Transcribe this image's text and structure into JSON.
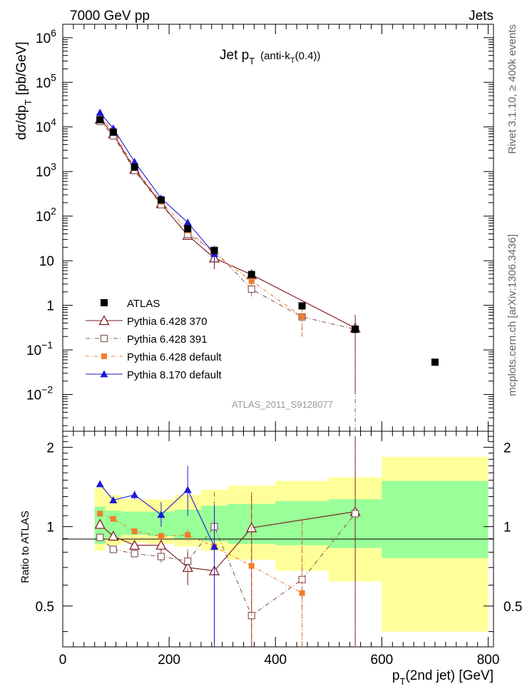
{
  "header": {
    "left": "7000 GeV pp",
    "right": "Jets",
    "side_top": "Rivet 3.1.10, ≥ 400k events",
    "side_bottom": "mcplots.cern.ch [arXiv:1306.3436]"
  },
  "chart_data": [
    {
      "type": "scatter",
      "title_main": "Jet p",
      "title_sub": "T",
      "title_paren": "(anti-k",
      "title_paren_sub": "T",
      "title_paren_end": "(0.4))",
      "ylabel_main": "dσ/dp",
      "ylabel_sub": "T",
      "ylabel_unit": "[pb/GeV]",
      "analysis_label": "ATLAS_2011_S9128077",
      "yscale": "log",
      "xlim": [
        0,
        810
      ],
      "ylim": [
        0.0015,
        2000000
      ],
      "y_ticks": [
        {
          "v": 1000000.0,
          "label": "10",
          "exp": "6"
        },
        {
          "v": 100000.0,
          "label": "10",
          "exp": "5"
        },
        {
          "v": 10000.0,
          "label": "10",
          "exp": "4"
        },
        {
          "v": 1000.0,
          "label": "10",
          "exp": "3"
        },
        {
          "v": 100.0,
          "label": "10",
          "exp": "2"
        },
        {
          "v": 10,
          "label": "10",
          "exp": ""
        },
        {
          "v": 1,
          "label": "1",
          "exp": ""
        },
        {
          "v": 0.1,
          "label": "10",
          "exp": "−1"
        },
        {
          "v": 0.01,
          "label": "10",
          "exp": "−2"
        }
      ],
      "legend_position": "lower-left",
      "data": {
        "name": "ATLAS",
        "x": [
          70,
          95,
          135,
          185,
          235,
          285,
          355,
          450,
          550,
          700
        ],
        "y": [
          14500,
          7600,
          1250,
          230,
          52,
          17,
          4.9,
          0.97,
          0.29,
          0.053
        ]
      },
      "series": [
        {
          "name": "Pythia 6.428 370",
          "color": "#7a1419",
          "marker": "open-triangle",
          "dash": "",
          "x": [
            70,
            95,
            135,
            185,
            235,
            285,
            355,
            550
          ],
          "y": [
            14800,
            7000,
            1120,
            190,
            37,
            11.5,
            4.85,
            0.31
          ],
          "err": [
            0,
            0,
            0,
            0,
            6,
            5,
            0,
            0.3
          ]
        },
        {
          "name": "Pythia 6.428 391",
          "color": "#8a5a5a",
          "marker": "open-square",
          "dash": "6,3,1,3",
          "x": [
            70,
            95,
            135,
            185,
            235,
            285,
            355,
            450,
            550
          ],
          "y": [
            13300,
            6300,
            1050,
            180,
            39,
            17,
            2.3,
            0.55,
            0.29
          ],
          "err": [
            0,
            0,
            0,
            0,
            6,
            5,
            0.9,
            0.35,
            0.3
          ]
        },
        {
          "name": "Pythia 6.428 default",
          "color": "#f07d2d",
          "marker": "filled-square",
          "dash": "5,3,1,3",
          "x": [
            70,
            95,
            135,
            185,
            235,
            285,
            355,
            450
          ],
          "y": [
            16200,
            8200,
            1200,
            210,
            48,
            14.5,
            3.5,
            0.56
          ],
          "err": [
            0,
            0,
            0,
            0,
            6,
            5,
            0.9,
            0.35
          ]
        },
        {
          "name": "Pythia 8.170 default",
          "color": "#1a1ad6",
          "marker": "filled-triangle",
          "dash": "",
          "x": [
            70,
            95,
            135,
            185,
            235,
            285
          ],
          "y": [
            21000,
            9300,
            1650,
            250,
            72,
            14.3
          ],
          "err": [
            0,
            0,
            0,
            0,
            15,
            5
          ]
        }
      ]
    },
    {
      "type": "scatter",
      "ylabel": "Ratio to ATLAS",
      "xlabel_main": "p",
      "xlabel_sub": "T",
      "xlabel_rest": "(2nd jet) [GeV]",
      "xlim": [
        0,
        810
      ],
      "ylim": [
        0.35,
        2.3
      ],
      "x_ticks": [
        "0",
        "200",
        "400",
        "600",
        "800"
      ],
      "y_ticks": [
        "0.5",
        "1",
        "2"
      ],
      "bands": [
        {
          "x0": 60,
          "x1": 80,
          "outer": [
            0.81,
            1.4
          ],
          "inner": [
            0.86,
            1.19
          ]
        },
        {
          "x0": 80,
          "x1": 110,
          "outer": [
            0.85,
            1.32
          ],
          "inner": [
            0.91,
            1.15
          ]
        },
        {
          "x0": 110,
          "x1": 160,
          "outer": [
            0.87,
            1.27
          ],
          "inner": [
            0.93,
            1.14
          ]
        },
        {
          "x0": 160,
          "x1": 210,
          "outer": [
            0.86,
            1.27
          ],
          "inner": [
            0.92,
            1.14
          ]
        },
        {
          "x0": 210,
          "x1": 260,
          "outer": [
            0.84,
            1.32
          ],
          "inner": [
            0.9,
            1.16
          ]
        },
        {
          "x0": 260,
          "x1": 310,
          "outer": [
            0.81,
            1.38
          ],
          "inner": [
            0.88,
            1.2
          ]
        },
        {
          "x0": 310,
          "x1": 400,
          "outer": [
            0.75,
            1.43
          ],
          "inner": [
            0.86,
            1.22
          ]
        },
        {
          "x0": 400,
          "x1": 500,
          "outer": [
            0.68,
            1.49
          ],
          "inner": [
            0.85,
            1.25
          ]
        },
        {
          "x0": 500,
          "x1": 600,
          "outer": [
            0.62,
            1.54
          ],
          "inner": [
            0.83,
            1.27
          ]
        },
        {
          "x0": 600,
          "x1": 800,
          "outer": [
            0.4,
            1.84
          ],
          "inner": [
            0.76,
            1.49
          ]
        }
      ],
      "series": [
        {
          "name": "Pythia 6.428 370",
          "color": "#7a1419",
          "marker": "open-triangle",
          "dash": "",
          "x": [
            70,
            95,
            135,
            185,
            235,
            285,
            355,
            550
          ],
          "y": [
            1.02,
            0.92,
            0.85,
            0.85,
            0.7,
            0.68,
            0.99,
            1.14
          ],
          "lo": [
            0.98,
            0.89,
            0.82,
            0.8,
            0.6,
            0.35,
            0.35,
            0.35
          ],
          "hi": [
            1.06,
            0.95,
            0.88,
            0.9,
            0.8,
            1.0,
            1.35,
            2.2
          ]
        },
        {
          "name": "Pythia 6.428 391",
          "color": "#8a5a5a",
          "marker": "open-square",
          "dash": "6,3,1,3",
          "x": [
            70,
            95,
            135,
            185,
            235,
            285,
            355,
            450,
            550
          ],
          "y": [
            0.91,
            0.82,
            0.79,
            0.77,
            0.74,
            1.0,
            0.46,
            0.63,
            1.12
          ],
          "lo": [
            0.88,
            0.8,
            0.77,
            0.73,
            0.66,
            0.5,
            0.35,
            0.35,
            0.35
          ],
          "hi": [
            0.94,
            0.84,
            0.81,
            0.81,
            0.82,
            1.35,
            0.6,
            1.05,
            2.15
          ]
        },
        {
          "name": "Pythia 6.428 default",
          "color": "#f07d2d",
          "marker": "filled-square",
          "dash": "5,3,1,3",
          "x": [
            70,
            95,
            135,
            185,
            235,
            285,
            355,
            450
          ],
          "y": [
            1.12,
            1.07,
            0.96,
            0.92,
            0.93,
            0.84,
            0.71,
            0.56
          ],
          "lo": [
            1.1,
            1.05,
            0.94,
            0.89,
            0.88,
            0.6,
            0.35,
            0.35
          ],
          "hi": [
            1.14,
            1.09,
            0.98,
            0.95,
            0.98,
            1.1,
            1.35,
            1.05
          ]
        },
        {
          "name": "Pythia 8.170 default",
          "color": "#1a1ad6",
          "marker": "filled-triangle",
          "dash": "",
          "x": [
            70,
            95,
            135,
            185,
            235,
            285
          ],
          "y": [
            1.45,
            1.26,
            1.32,
            1.11,
            1.38,
            0.84
          ],
          "lo": [
            1.45,
            1.23,
            1.27,
            1.0,
            1.1,
            0.35
          ],
          "hi": [
            1.45,
            1.29,
            1.37,
            1.24,
            1.7,
            1.2
          ]
        }
      ]
    }
  ]
}
